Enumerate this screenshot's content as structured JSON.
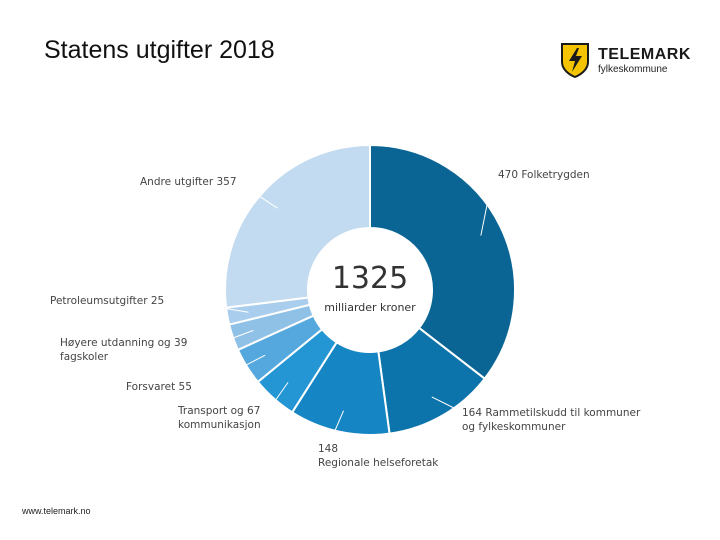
{
  "title": "Statens utgifter 2018",
  "logo": {
    "name": "TELEMARK",
    "sub": "fylkeskommune"
  },
  "footer": "www.telemark.no",
  "colors": {
    "brand_yellow": "#f5c400",
    "text": "#444444"
  },
  "chart_data": {
    "type": "pie",
    "total": "1325",
    "unit": "milliarder kroner",
    "slices": [
      {
        "label": "Folketrygden",
        "value": 470,
        "color": "#0a6594"
      },
      {
        "label": "Rammetilskudd til kommuner og fylkeskommuner",
        "value": 164,
        "color": "#0d74ab"
      },
      {
        "label": "Regionale helseforetak",
        "value": 148,
        "color": "#1685c3"
      },
      {
        "label": "Transport og kommunikasjon",
        "value": 67,
        "color": "#2596d4"
      },
      {
        "label": "Forsvaret",
        "value": 55,
        "color": "#55a8dd"
      },
      {
        "label": "Høyere utdanning og fagskoler",
        "value": 39,
        "color": "#8fc0e6"
      },
      {
        "label": "Petroleumsutgifter",
        "value": 25,
        "color": "#a9cdec"
      },
      {
        "label": "Andre utgifter",
        "value": 357,
        "color": "#c3dbf0"
      }
    ],
    "labels": [
      {
        "lines": [
          "470 Folketrygden"
        ]
      },
      {
        "lines": [
          "164 Rammetilskudd til kommuner",
          "og fylkeskommuner"
        ]
      },
      {
        "lines": [
          "148",
          "Regionale helseforetak"
        ]
      },
      {
        "lines": [
          "Transport og 67",
          "kommunikasjon"
        ]
      },
      {
        "lines": [
          "Forsvaret 55"
        ]
      },
      {
        "lines": [
          "Høyere utdanning og 39",
          "fagskoler"
        ]
      },
      {
        "lines": [
          "Petroleumsutgifter 25"
        ]
      },
      {
        "lines": [
          "Andre utgifter 357"
        ]
      }
    ]
  }
}
